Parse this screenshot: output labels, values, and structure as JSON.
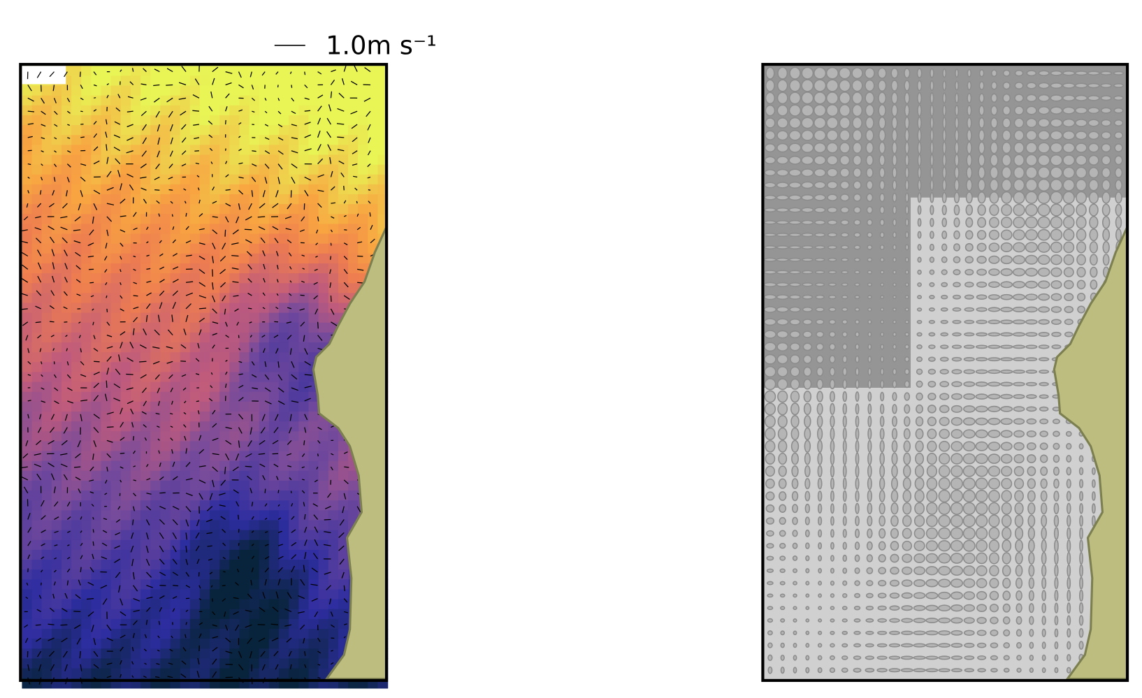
{
  "quiver_key": {
    "label": "1.0m s⁻¹"
  }
}
